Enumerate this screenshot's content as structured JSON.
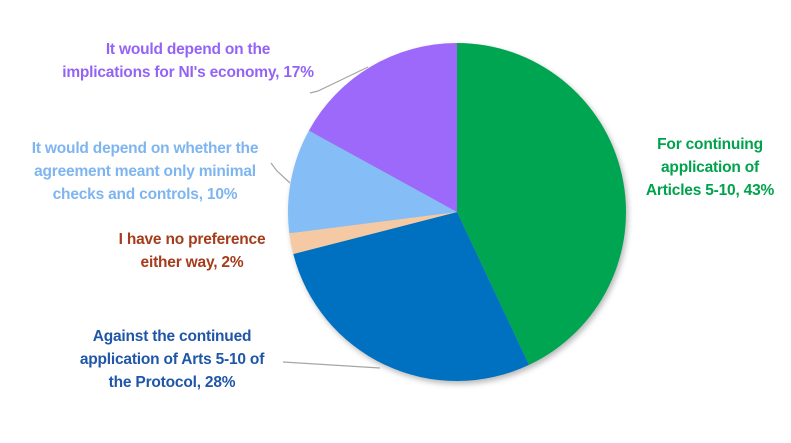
{
  "chart_data": {
    "type": "pie",
    "start_angle_deg": 0,
    "direction": "clockwise",
    "background": "#FFFFFF",
    "legend_position": "none",
    "labels_outside": true,
    "leader_line_color": "#A6A6A6",
    "slices": [
      {
        "name": "for-continuing-articles",
        "label": "For continuing application of Articles 5-10",
        "value": 43,
        "color": "#00A551",
        "text_color": "#00A24C",
        "callout_lines": [
          "For continuing",
          "application of",
          "Articles 5-10, 43%"
        ]
      },
      {
        "name": "against-continued-application",
        "label": "Against the continued application of Arts 5-10 of the Protocol",
        "value": 28,
        "color": "#0070C0",
        "text_color": "#1F56A8",
        "callout_lines": [
          "Against the continued",
          "application of Arts 5-10 of",
          "the Protocol, 28%"
        ]
      },
      {
        "name": "no-preference",
        "label": "I have no preference either way",
        "value": 2,
        "color": "#F5C9A3",
        "text_color": "#A53C1B",
        "callout_lines": [
          "I have no preference",
          "either way, 2%"
        ]
      },
      {
        "name": "depends-minimal-checks",
        "label": "It would depend on whether the agreement meant only minimal checks and controls",
        "value": 10,
        "color": "#85BEF7",
        "text_color": "#7EB5F0",
        "callout_lines": [
          "It would depend on whether the",
          "agreement meant only minimal",
          "checks and controls, 10%"
        ]
      },
      {
        "name": "depends-ni-economy",
        "label": "It would depend on the implications for NI's economy",
        "value": 17,
        "color": "#9C69FA",
        "text_color": "#9463F6",
        "callout_lines": [
          "It would depend on the",
          "implications for NI's economy, 17%"
        ]
      }
    ]
  }
}
